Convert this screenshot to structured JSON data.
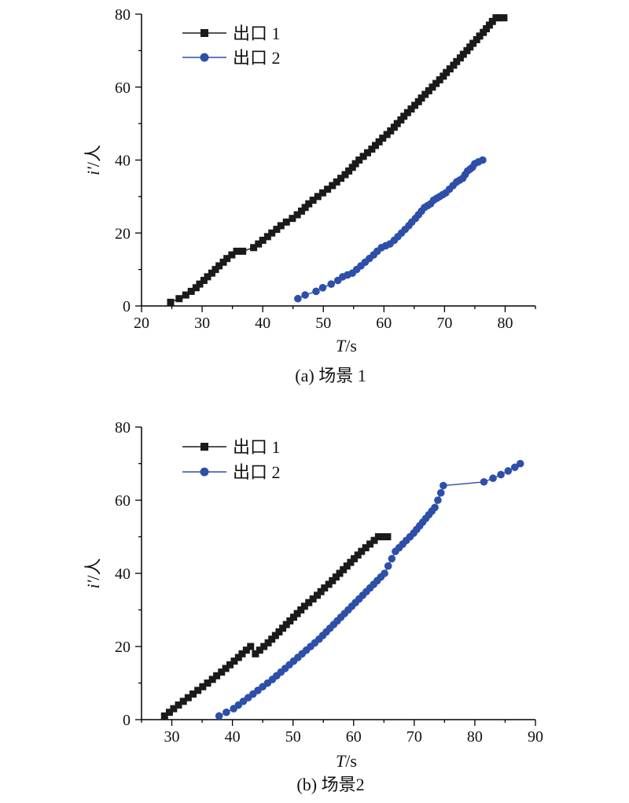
{
  "chart_data": [
    {
      "type": "line",
      "caption": "(a) 场景 1",
      "xlabel_italic": "T",
      "xlabel_unit": "/s",
      "ylabel_italic": "i'",
      "ylabel_unit": "/人",
      "xlim": [
        20,
        85
      ],
      "ylim": [
        0,
        80
      ],
      "xticks": [
        20,
        30,
        40,
        50,
        60,
        70,
        80
      ],
      "yticks": [
        0,
        20,
        40,
        60,
        80
      ],
      "legend_position": "top-left",
      "series": [
        {
          "name": "出口 1",
          "color": "#1a1a1a",
          "marker": "square",
          "x": [
            24.8,
            26.2,
            27.3,
            28.2,
            29.0,
            29.6,
            30.3,
            30.9,
            31.6,
            32.2,
            32.8,
            33.5,
            34.1,
            34.9,
            35.7,
            36.7,
            38.5,
            39.3,
            40.0,
            40.8,
            41.5,
            42.3,
            43.0,
            43.9,
            44.9,
            45.7,
            46.4,
            47.0,
            47.6,
            48.3,
            49.1,
            49.9,
            50.7,
            51.5,
            52.2,
            52.9,
            53.6,
            54.2,
            54.8,
            55.3,
            55.9,
            56.6,
            57.3,
            58.0,
            58.6,
            59.2,
            59.8,
            60.5,
            61.1,
            61.7,
            62.2,
            62.8,
            63.3,
            63.9,
            64.5,
            65.1,
            65.7,
            66.2,
            66.8,
            67.4,
            68.0,
            68.6,
            69.2,
            69.8,
            70.3,
            70.9,
            71.5,
            72.0,
            72.6,
            73.1,
            73.7,
            74.2,
            74.7,
            75.3,
            75.8,
            76.4,
            76.9,
            77.4,
            77.9,
            78.5,
            79.0,
            79.8
          ],
          "y": [
            1,
            2,
            3,
            4,
            5,
            6,
            7,
            8,
            9,
            10,
            11,
            12,
            13,
            14,
            15,
            15,
            16,
            17,
            18,
            19,
            20,
            21,
            22,
            23,
            24,
            25,
            26,
            27,
            28,
            29,
            30,
            31,
            32,
            33,
            34,
            35,
            36,
            37,
            38,
            39,
            40,
            41,
            42,
            43,
            44,
            45,
            46,
            47,
            48,
            49,
            50,
            51,
            52,
            53,
            54,
            55,
            56,
            57,
            58,
            59,
            60,
            61,
            62,
            63,
            64,
            65,
            66,
            67,
            68,
            69,
            70,
            71,
            72,
            73,
            74,
            75,
            76,
            77,
            78,
            79,
            79,
            79
          ]
        },
        {
          "name": "出口 2",
          "color": "#2e4fa8",
          "marker": "circle",
          "x": [
            45.8,
            47.0,
            48.8,
            49.9,
            51.3,
            52.4,
            53.2,
            54.0,
            54.8,
            55.5,
            56.2,
            56.9,
            57.6,
            58.3,
            58.9,
            59.6,
            60.3,
            61.0,
            61.7,
            62.3,
            62.9,
            63.5,
            64.1,
            64.6,
            65.2,
            65.7,
            66.2,
            66.7,
            67.2,
            67.7,
            68.2,
            68.7,
            69.2,
            69.7,
            70.2,
            70.8,
            71.4,
            72.0,
            72.5,
            73.0,
            73.4,
            73.8,
            74.2,
            74.6,
            75.0,
            75.6,
            76.3
          ],
          "y": [
            2,
            3,
            4,
            5,
            6,
            7,
            8,
            8.5,
            9,
            10,
            11,
            12,
            13,
            14,
            15,
            16,
            16.5,
            17,
            18,
            19,
            20,
            21,
            22,
            23,
            24,
            25,
            26,
            27,
            27.5,
            28,
            29,
            29.5,
            30,
            30.5,
            31,
            32,
            33,
            34,
            34.5,
            35,
            36,
            37,
            37.5,
            38,
            39,
            39.5,
            40
          ]
        }
      ]
    },
    {
      "type": "line",
      "caption": "(b) 场景2",
      "xlabel_italic": "T",
      "xlabel_unit": "/s",
      "ylabel_italic": "i'",
      "ylabel_unit": "/人",
      "xlim": [
        25,
        90
      ],
      "ylim": [
        0,
        80
      ],
      "xticks": [
        30,
        40,
        50,
        60,
        70,
        80,
        90
      ],
      "yticks": [
        0,
        20,
        40,
        60,
        80
      ],
      "legend_position": "top-left",
      "series": [
        {
          "name": "出口 1",
          "color": "#1a1a1a",
          "marker": "square",
          "x": [
            28.8,
            29.6,
            30.3,
            31.1,
            31.9,
            32.7,
            33.5,
            34.3,
            35.1,
            35.9,
            36.7,
            37.4,
            38.2,
            38.9,
            39.6,
            40.3,
            41.0,
            41.6,
            42.3,
            43.0,
            43.8,
            44.5,
            45.2,
            45.9,
            46.5,
            47.1,
            47.7,
            48.3,
            48.9,
            49.5,
            50.1,
            50.7,
            51.3,
            51.9,
            52.6,
            53.3,
            54.0,
            54.6,
            55.2,
            55.9,
            56.5,
            57.1,
            57.7,
            58.3,
            58.9,
            59.5,
            60.1,
            60.7,
            61.3,
            62.0,
            62.7,
            63.4,
            64.1,
            64.9,
            65.6
          ],
          "y": [
            1,
            2,
            3,
            4,
            5,
            6,
            7,
            8,
            9,
            10,
            11,
            12,
            13,
            14,
            15,
            16,
            17,
            18,
            19,
            20,
            18,
            19,
            20,
            21,
            22,
            23,
            24,
            25,
            26,
            27,
            28,
            29,
            30,
            31,
            32,
            33,
            34,
            35,
            36,
            37,
            38,
            39,
            40,
            41,
            42,
            43,
            44,
            45,
            46,
            47,
            48,
            49,
            50,
            50,
            50
          ]
        },
        {
          "name": "出口 2",
          "color": "#2e4fa8",
          "marker": "circle",
          "x": [
            37.8,
            39.0,
            40.2,
            41.0,
            41.8,
            42.6,
            43.4,
            44.2,
            45.0,
            45.8,
            46.6,
            47.3,
            48.0,
            48.7,
            49.4,
            50.1,
            50.8,
            51.5,
            52.2,
            52.9,
            53.6,
            54.3,
            54.9,
            55.5,
            56.1,
            56.7,
            57.3,
            57.9,
            58.5,
            59.1,
            59.7,
            60.3,
            60.9,
            61.5,
            62.1,
            62.7,
            63.3,
            63.9,
            64.5,
            65.1,
            65.7,
            66.3,
            66.9,
            67.5,
            68.1,
            68.7,
            69.3,
            69.9,
            70.4,
            70.9,
            71.4,
            71.9,
            72.4,
            72.9,
            73.4,
            73.9,
            74.4,
            74.8,
            81.5,
            83.0,
            84.3,
            85.5,
            86.6,
            87.5
          ],
          "y": [
            1,
            2,
            3,
            4,
            5,
            6,
            7,
            8,
            9,
            10,
            11,
            12,
            13,
            14,
            15,
            16,
            17,
            18,
            19,
            20,
            21,
            22,
            23,
            24,
            25,
            26,
            27,
            28,
            29,
            30,
            31,
            32,
            33,
            34,
            35,
            36,
            37,
            38,
            39,
            40,
            42,
            44,
            46,
            47,
            48,
            49,
            50,
            51,
            52,
            53,
            54,
            55,
            56,
            57,
            58,
            60,
            62,
            64,
            65,
            66,
            67,
            68,
            69,
            70
          ]
        }
      ]
    }
  ]
}
